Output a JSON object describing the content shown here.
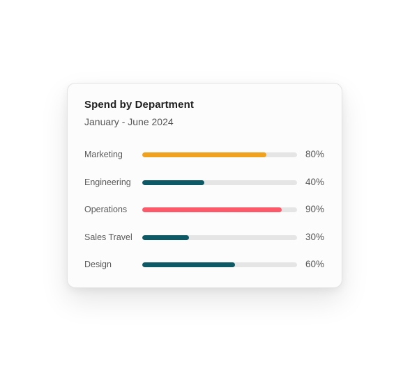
{
  "chart_data": {
    "type": "bar",
    "orientation": "horizontal",
    "title": "Spend by Department",
    "subtitle": "January - June 2024",
    "categories": [
      "Marketing",
      "Engineering",
      "Operations",
      "Sales Travel",
      "Design"
    ],
    "values": [
      80,
      40,
      90,
      30,
      60
    ],
    "value_labels": [
      "80%",
      "40%",
      "90%",
      "30%",
      "60%"
    ],
    "colors": [
      "#f0a21e",
      "#0e5966",
      "#fa5a6a",
      "#0e5966",
      "#0e5966"
    ],
    "track_color": "#e5e5e5",
    "xlim": [
      0,
      100
    ],
    "grid": false,
    "legend": "none"
  }
}
